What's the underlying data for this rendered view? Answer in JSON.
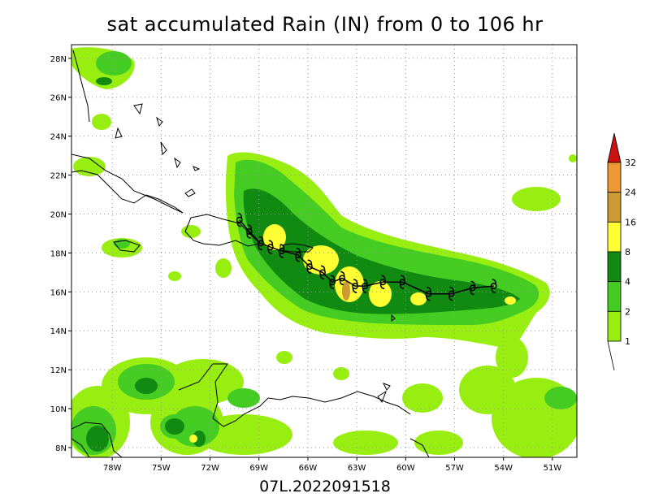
{
  "title": "sat accumulated Rain (IN) from 0 to 106 hr",
  "footer": "07L.2022091518",
  "axes": {
    "lon_ticks": [
      "78W",
      "75W",
      "72W",
      "69W",
      "66W",
      "63W",
      "60W",
      "57W",
      "54W",
      "51W"
    ],
    "lon_values": [
      -78,
      -75,
      -72,
      -69,
      -66,
      -63,
      -60,
      -57,
      -54,
      -51
    ],
    "lat_ticks": [
      "8N",
      "10N",
      "12N",
      "14N",
      "16N",
      "18N",
      "20N",
      "22N",
      "24N",
      "26N",
      "28N"
    ],
    "lat_values": [
      8,
      10,
      12,
      14,
      16,
      18,
      20,
      22,
      24,
      26,
      28
    ],
    "lon_range": [
      -80.5,
      -49.5
    ],
    "lat_range": [
      7.5,
      28.7
    ],
    "grid": "dotted"
  },
  "legend": {
    "placement": "right",
    "levels": [
      "1",
      "2",
      "4",
      "8",
      "16",
      "24",
      "32"
    ],
    "colors": [
      "#99ee11",
      "#44cc22",
      "#118a11",
      "#ffff33",
      "#cc9933",
      "#ee9933",
      "#cc1111"
    ]
  },
  "storm_symbol": "tropical-storm-icon",
  "track": [
    [
      -70.2,
      19.7
    ],
    [
      -69.6,
      19.1
    ],
    [
      -68.9,
      18.5
    ],
    [
      -68.3,
      18.3
    ],
    [
      -67.6,
      18.1
    ],
    [
      -66.6,
      17.9
    ],
    [
      -65.9,
      17.3
    ],
    [
      -65.1,
      17.0
    ],
    [
      -64.5,
      16.5
    ],
    [
      -63.9,
      16.7
    ],
    [
      -63.1,
      16.3
    ],
    [
      -62.5,
      16.3
    ],
    [
      -61.4,
      16.5
    ],
    [
      -60.2,
      16.5
    ],
    [
      -58.6,
      15.9
    ],
    [
      -57.2,
      15.9
    ],
    [
      -55.9,
      16.2
    ],
    [
      -54.6,
      16.3
    ]
  ]
}
